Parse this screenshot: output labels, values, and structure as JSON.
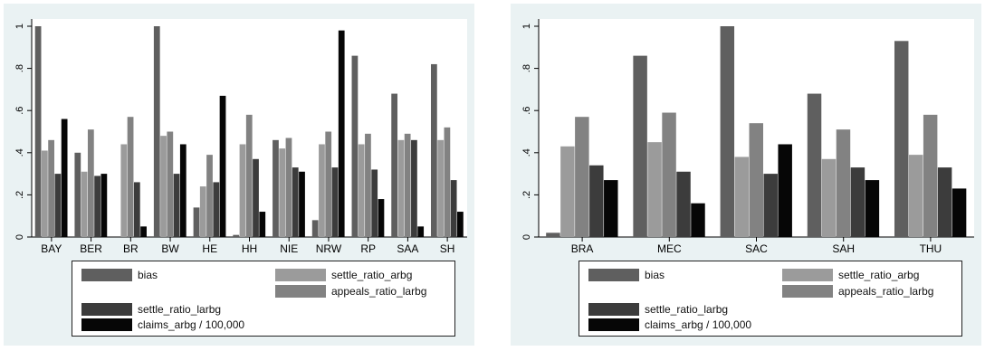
{
  "colors": {
    "bias": "#5f5f5f",
    "settle_ratio_arbg": "#9b9b9b",
    "appeals_ratio_larbg": "#828282",
    "settle_ratio_larbg": "#3c3c3c",
    "claims_arbg": "#060606"
  },
  "legend": {
    "bias": "bias",
    "settle_ratio_arbg": "settle_ratio_arbg",
    "appeals_ratio_larbg": "appeals_ratio_larbg",
    "settle_ratio_larbg": "settle_ratio_larbg",
    "claims_arbg": "claims_arbg / 100,000"
  },
  "chart_data": [
    {
      "type": "bar",
      "title": "",
      "xlabel": "",
      "ylabel": "",
      "ylim": [
        0,
        1
      ],
      "yticks": [
        "0",
        ".2",
        ".4",
        ".6",
        ".8",
        "1"
      ],
      "grid": false,
      "legend_position": "bottom",
      "categories": [
        "BAY",
        "BER",
        "BR",
        "BW",
        "HE",
        "HH",
        "NIE",
        "NRW",
        "RP",
        "SAA",
        "SH"
      ],
      "series": [
        {
          "name": "bias",
          "key": "bias",
          "values": [
            1.0,
            0.4,
            0.0,
            1.0,
            0.14,
            0.01,
            0.46,
            0.08,
            0.86,
            0.68,
            0.82
          ]
        },
        {
          "name": "settle_ratio_arbg",
          "key": "settle_ratio_arbg",
          "values": [
            0.41,
            0.31,
            0.44,
            0.48,
            0.24,
            0.44,
            0.42,
            0.44,
            0.44,
            0.46,
            0.46
          ]
        },
        {
          "name": "appeals_ratio_larbg",
          "key": "appeals_ratio_larbg",
          "values": [
            0.46,
            0.51,
            0.57,
            0.5,
            0.39,
            0.58,
            0.47,
            0.5,
            0.49,
            0.49,
            0.52
          ]
        },
        {
          "name": "settle_ratio_larbg",
          "key": "settle_ratio_larbg",
          "values": [
            0.3,
            0.29,
            0.26,
            0.3,
            0.26,
            0.37,
            0.33,
            0.33,
            0.32,
            0.46,
            0.27
          ]
        },
        {
          "name": "claims_arbg / 100,000",
          "key": "claims_arbg",
          "values": [
            0.56,
            0.3,
            0.05,
            0.44,
            0.67,
            0.12,
            0.31,
            0.98,
            0.18,
            0.05,
            0.12
          ]
        }
      ]
    },
    {
      "type": "bar",
      "title": "",
      "xlabel": "",
      "ylabel": "",
      "ylim": [
        0,
        1
      ],
      "yticks": [
        "0",
        ".2",
        ".4",
        ".6",
        ".8",
        "1"
      ],
      "grid": false,
      "legend_position": "bottom",
      "categories": [
        "BRA",
        "MEC",
        "SAC",
        "SAH",
        "THU"
      ],
      "series": [
        {
          "name": "bias",
          "key": "bias",
          "values": [
            0.02,
            0.86,
            1.0,
            0.68,
            0.93
          ]
        },
        {
          "name": "settle_ratio_arbg",
          "key": "settle_ratio_arbg",
          "values": [
            0.43,
            0.45,
            0.38,
            0.37,
            0.39
          ]
        },
        {
          "name": "appeals_ratio_larbg",
          "key": "appeals_ratio_larbg",
          "values": [
            0.57,
            0.59,
            0.54,
            0.51,
            0.58
          ]
        },
        {
          "name": "settle_ratio_larbg",
          "key": "settle_ratio_larbg",
          "values": [
            0.34,
            0.31,
            0.3,
            0.33,
            0.33
          ]
        },
        {
          "name": "claims_arbg / 100,000",
          "key": "claims_arbg",
          "values": [
            0.27,
            0.16,
            0.44,
            0.27,
            0.23
          ]
        }
      ]
    }
  ]
}
